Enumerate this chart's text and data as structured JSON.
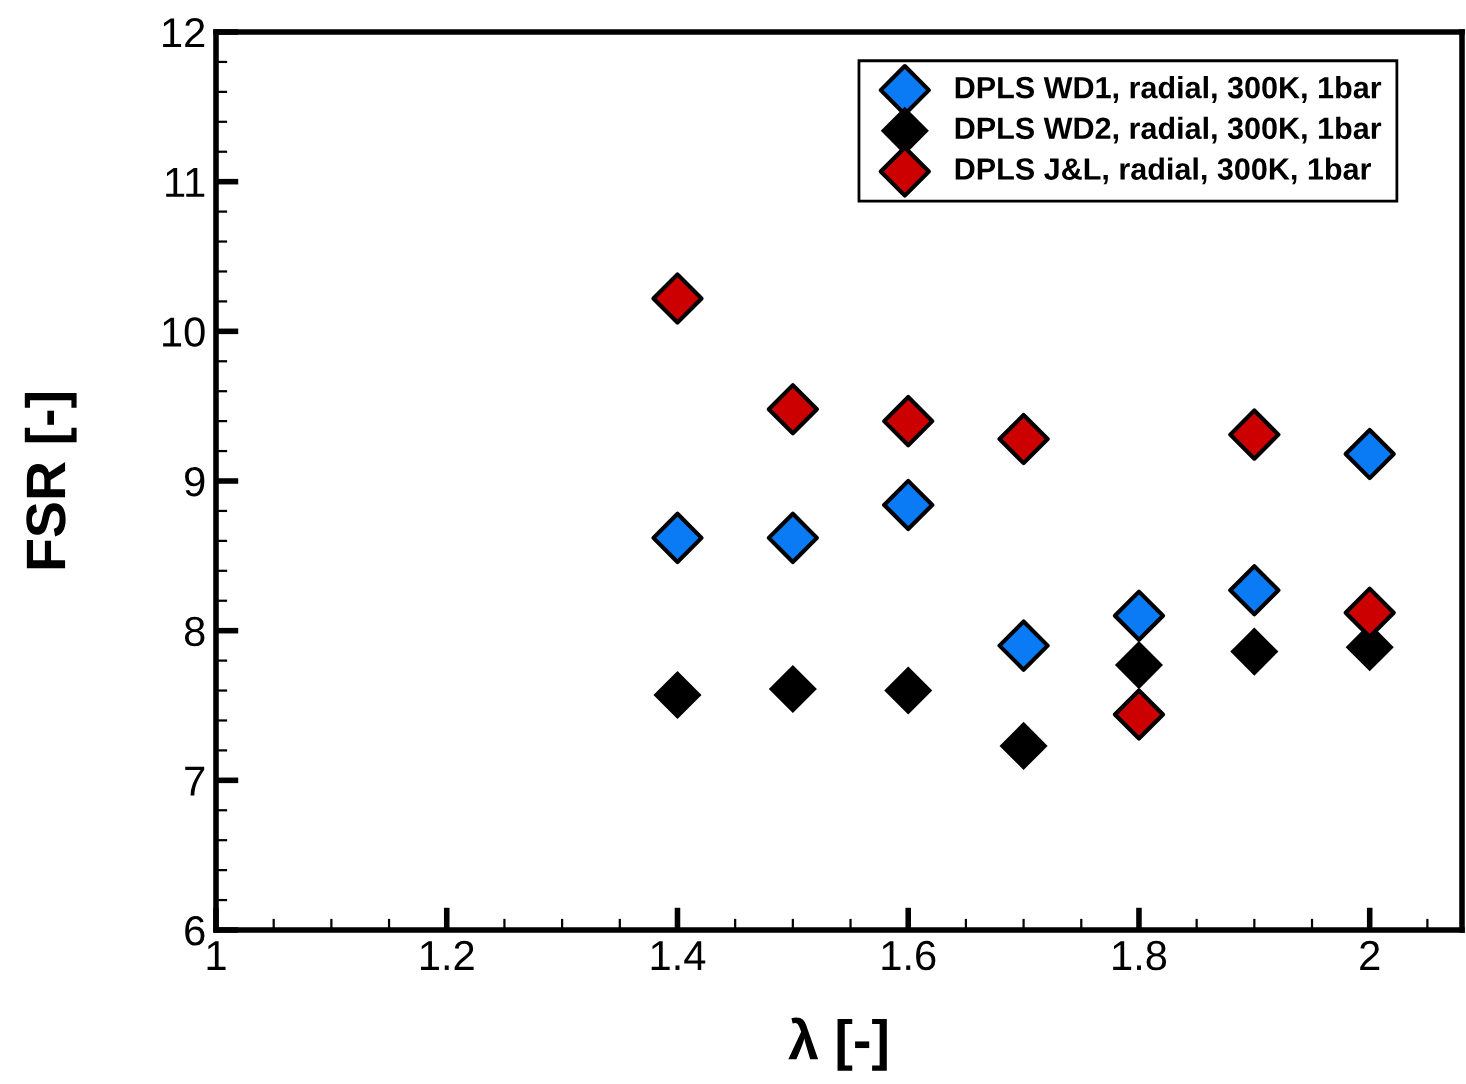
{
  "chart_data": {
    "type": "scatter",
    "xlabel": "λ [-]",
    "ylabel": "FSR [-]",
    "x": [
      1.4,
      1.5,
      1.6,
      1.7,
      1.8,
      1.9,
      2.0
    ],
    "series": [
      {
        "name": "DPLS WD1, radial, 300K, 1bar",
        "color": "#0a7bf5",
        "values": [
          8.62,
          8.62,
          8.84,
          7.9,
          8.1,
          8.27,
          9.18
        ]
      },
      {
        "name": "DPLS WD2, radial, 300K, 1bar",
        "color": "#000000",
        "values": [
          7.57,
          7.61,
          7.6,
          7.23,
          7.77,
          7.86,
          7.89
        ]
      },
      {
        "name": "DPLS J&L, radial, 300K, 1bar",
        "color": "#cc0000",
        "values": [
          10.22,
          9.48,
          9.4,
          9.28,
          7.44,
          9.31,
          8.12
        ]
      }
    ],
    "xlim": [
      1,
      2.08
    ],
    "xticks": [
      1,
      1.2,
      1.4,
      1.6,
      1.8,
      2
    ],
    "ylim": [
      6,
      12
    ],
    "yticks": [
      6,
      7,
      8,
      9,
      10,
      11,
      12
    ],
    "marker": "diamond",
    "grid": false,
    "legend": "top right"
  }
}
